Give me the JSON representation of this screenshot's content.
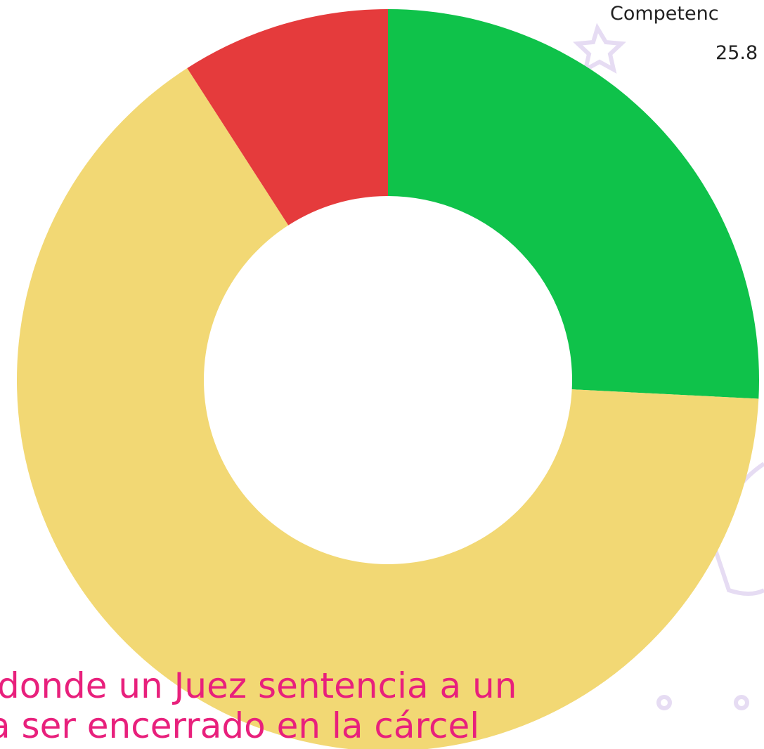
{
  "chart_data": {
    "type": "pie",
    "donut": true,
    "categories": [
      "Competenc",
      null,
      null
    ],
    "values": [
      25.8,
      65.1,
      9.1
    ],
    "colors": [
      "#0fc24a",
      "#f2d874",
      "#e53b3c"
    ],
    "annotations": [
      "donde un Juez sentencia a un",
      "a ser encerrado en la cárcel"
    ]
  }
}
